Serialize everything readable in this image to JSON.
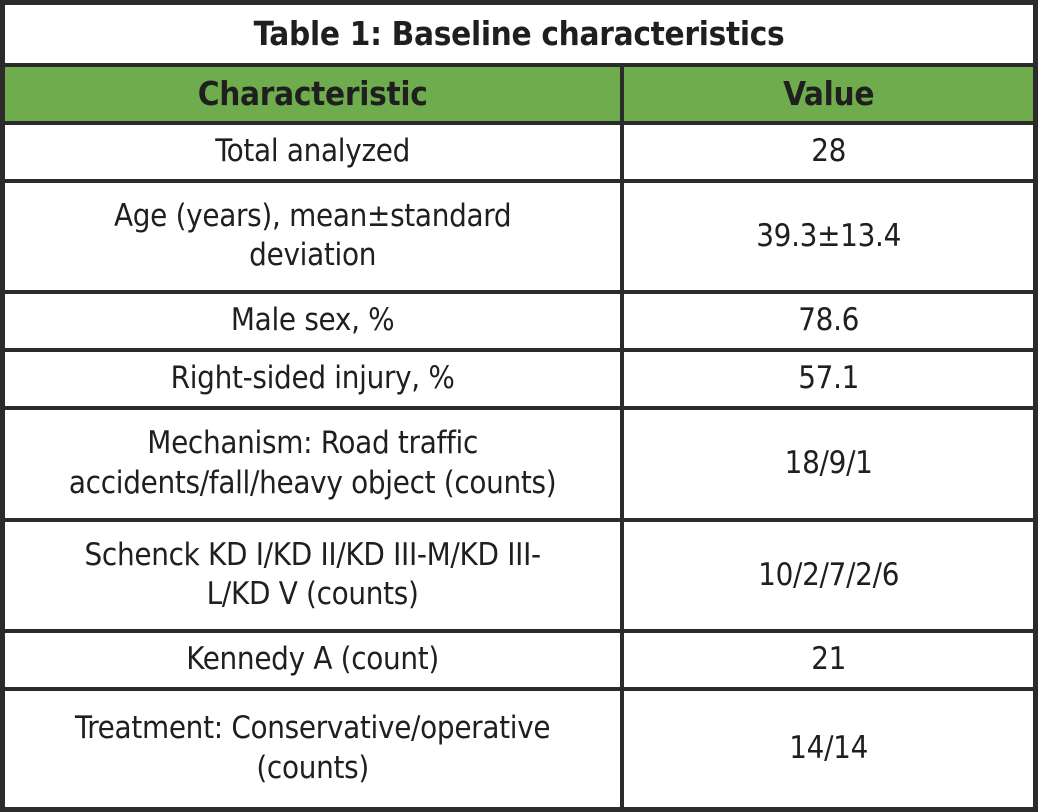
{
  "colors": {
    "header_green": "#6FAC4D",
    "border": "#2B2B2B",
    "text": "#1F1F1F"
  },
  "table": {
    "title": "Table 1: Baseline characteristics",
    "columns": [
      "Characteristic",
      "Value"
    ],
    "rows": [
      [
        "Total analyzed",
        "28"
      ],
      [
        "Age (years), mean±standard\ndeviation",
        "39.3±13.4"
      ],
      [
        "Male sex, %",
        "78.6"
      ],
      [
        "Right-sided injury, %",
        "57.1"
      ],
      [
        "Mechanism: Road traffic\naccidents/fall/heavy object (counts)",
        "18/9/1"
      ],
      [
        "Schenck KD I/KD II/KD III-M/KD III-\nL/KD V (counts)",
        "10/2/7/2/6"
      ],
      [
        "Kennedy A (count)",
        "21"
      ],
      [
        "Treatment: Conservative/operative\n(counts)",
        "14/14"
      ]
    ]
  },
  "chart_data": {
    "type": "table",
    "title": "Table 1: Baseline characteristics",
    "columns": [
      "Characteristic",
      "Value"
    ],
    "rows": [
      [
        "Total analyzed",
        "28"
      ],
      [
        "Age (years), mean±standard deviation",
        "39.3±13.4"
      ],
      [
        "Male sex, %",
        "78.6"
      ],
      [
        "Right-sided injury, %",
        "57.1"
      ],
      [
        "Mechanism: Road traffic accidents/fall/heavy object (counts)",
        "18/9/1"
      ],
      [
        "Schenck KD I/KD II/KD III-M/KD III-L/KD V (counts)",
        "10/2/7/2/6"
      ],
      [
        "Kennedy A (count)",
        "21"
      ],
      [
        "Treatment: Conservative/operative (counts)",
        "14/14"
      ]
    ]
  }
}
